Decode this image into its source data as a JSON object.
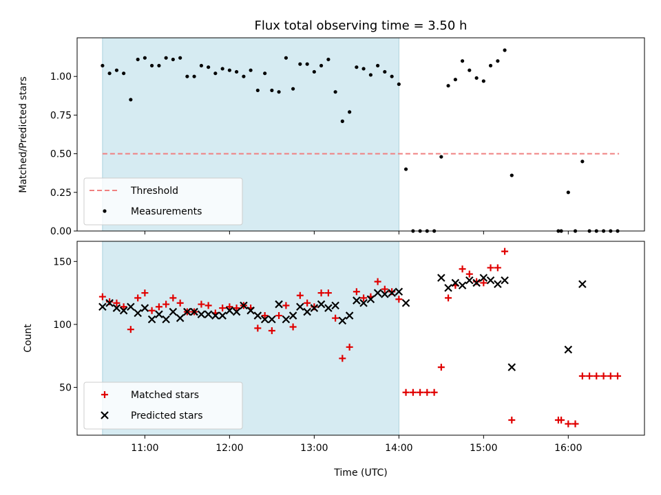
{
  "chart_data": [
    {
      "type": "scatter",
      "title": "Flux total observing time = 3.50 h",
      "xlabel": "",
      "ylabel": "Matched/Predicted stars",
      "xlim": [
        10.2,
        16.9
      ],
      "ylim": [
        0,
        1.25
      ],
      "yticks": [
        0.0,
        0.25,
        0.5,
        0.75,
        1.0
      ],
      "ytick_labels": [
        "0.00",
        "0.25",
        "0.50",
        "0.75",
        "1.00"
      ],
      "shaded_span": [
        10.5,
        14.0
      ],
      "legend": {
        "location": "lower-left",
        "entries": [
          "Threshold",
          "Measurements"
        ]
      },
      "threshold": {
        "name": "Threshold",
        "value": 0.5,
        "x_range": [
          10.5,
          16.6
        ],
        "color": "#f08080"
      },
      "series": [
        {
          "name": "Measurements",
          "marker": "dot",
          "color": "#000000",
          "x": [
            10.5,
            10.583,
            10.667,
            10.75,
            10.833,
            10.917,
            11.0,
            11.083,
            11.167,
            11.25,
            11.333,
            11.417,
            11.5,
            11.583,
            11.667,
            11.75,
            11.833,
            11.917,
            12.0,
            12.083,
            12.167,
            12.25,
            12.333,
            12.417,
            12.5,
            12.583,
            12.667,
            12.75,
            12.833,
            12.917,
            13.0,
            13.083,
            13.167,
            13.25,
            13.333,
            13.417,
            13.5,
            13.583,
            13.667,
            13.75,
            13.833,
            13.917,
            14.0,
            14.083,
            14.167,
            14.25,
            14.333,
            14.417,
            14.5,
            14.583,
            14.667,
            14.75,
            14.833,
            14.917,
            15.0,
            15.083,
            15.167,
            15.25,
            15.333,
            15.883,
            15.917,
            16.0,
            16.083,
            16.167,
            16.25,
            16.333,
            16.417,
            16.5,
            16.583
          ],
          "y": [
            1.07,
            1.02,
            1.04,
            1.02,
            0.85,
            1.11,
            1.12,
            1.07,
            1.07,
            1.12,
            1.11,
            1.12,
            1.0,
            1.0,
            1.07,
            1.06,
            1.02,
            1.05,
            1.04,
            1.03,
            1.0,
            1.04,
            0.91,
            1.02,
            0.91,
            0.9,
            1.12,
            0.92,
            1.08,
            1.08,
            1.03,
            1.07,
            1.11,
            0.9,
            0.71,
            0.77,
            1.06,
            1.05,
            1.01,
            1.07,
            1.03,
            1.0,
            0.95,
            0.4,
            0.0,
            0.0,
            0.0,
            0.0,
            0.48,
            0.94,
            0.98,
            1.1,
            1.04,
            0.99,
            0.97,
            1.07,
            1.1,
            1.17,
            0.36,
            0.0,
            0.0,
            0.25,
            0.0,
            0.45,
            0.0,
            0.0,
            0.0,
            0.0,
            0.0
          ]
        }
      ]
    },
    {
      "type": "scatter",
      "title": "",
      "xlabel": "Time (UTC)",
      "ylabel": "Count",
      "xlim": [
        10.2,
        16.9
      ],
      "ylim": [
        12,
        166
      ],
      "yticks": [
        50,
        100,
        150
      ],
      "ytick_labels": [
        "50",
        "100",
        "150"
      ],
      "xticks": [
        11,
        12,
        13,
        14,
        15,
        16
      ],
      "xtick_labels": [
        "11:00",
        "12:00",
        "13:00",
        "14:00",
        "15:00",
        "16:00"
      ],
      "shaded_span": [
        10.5,
        14.0
      ],
      "legend": {
        "location": "lower-left",
        "entries": [
          "Matched stars",
          "Predicted stars"
        ]
      },
      "series": [
        {
          "name": "Matched stars",
          "marker": "plus",
          "color": "#e00000",
          "x": [
            10.5,
            10.583,
            10.667,
            10.75,
            10.833,
            10.917,
            11.0,
            11.083,
            11.167,
            11.25,
            11.333,
            11.417,
            11.5,
            11.583,
            11.667,
            11.75,
            11.833,
            11.917,
            12.0,
            12.083,
            12.167,
            12.25,
            12.333,
            12.417,
            12.5,
            12.583,
            12.667,
            12.75,
            12.833,
            12.917,
            13.0,
            13.083,
            13.167,
            13.25,
            13.333,
            13.417,
            13.5,
            13.583,
            13.667,
            13.75,
            13.833,
            13.917,
            14.0,
            14.083,
            14.167,
            14.25,
            14.333,
            14.417,
            14.5,
            14.583,
            14.667,
            14.75,
            14.833,
            14.917,
            15.0,
            15.083,
            15.167,
            15.25,
            15.333,
            15.883,
            15.917,
            16.0,
            16.083,
            16.167,
            16.25,
            16.333,
            16.417,
            16.5,
            16.583
          ],
          "y": [
            122,
            118,
            117,
            114,
            96,
            121,
            125,
            111,
            114,
            116,
            121,
            117,
            110,
            110,
            116,
            115,
            109,
            113,
            114,
            113,
            115,
            113,
            97,
            107,
            95,
            107,
            115,
            98,
            123,
            117,
            114,
            125,
            125,
            105,
            73,
            82,
            126,
            121,
            122,
            134,
            128,
            126,
            120,
            46,
            46,
            46,
            46,
            46,
            66,
            121,
            131,
            144,
            140,
            134,
            133,
            145,
            145,
            158,
            24,
            24,
            24,
            21,
            21,
            59,
            59,
            59,
            59,
            59,
            59
          ]
        },
        {
          "name": "Predicted stars",
          "marker": "x",
          "color": "#000000",
          "x": [
            10.5,
            10.583,
            10.667,
            10.75,
            10.833,
            10.917,
            11.0,
            11.083,
            11.167,
            11.25,
            11.333,
            11.417,
            11.5,
            11.583,
            11.667,
            11.75,
            11.833,
            11.917,
            12.0,
            12.083,
            12.167,
            12.25,
            12.333,
            12.417,
            12.5,
            12.583,
            12.667,
            12.75,
            12.833,
            12.917,
            13.0,
            13.083,
            13.167,
            13.25,
            13.333,
            13.417,
            13.5,
            13.583,
            13.667,
            13.75,
            13.833,
            13.917,
            14.0,
            14.083,
            14.5,
            14.583,
            14.667,
            14.75,
            14.833,
            14.917,
            15.0,
            15.083,
            15.167,
            15.25,
            15.333,
            16.0,
            16.167
          ],
          "y": [
            114,
            117,
            113,
            111,
            114,
            109,
            113,
            104,
            108,
            104,
            110,
            105,
            110,
            110,
            108,
            108,
            107,
            107,
            111,
            110,
            115,
            111,
            107,
            104,
            104,
            116,
            104,
            107,
            114,
            110,
            113,
            116,
            113,
            115,
            103,
            107,
            119,
            117,
            120,
            125,
            124,
            125,
            126,
            117,
            137,
            129,
            133,
            131,
            135,
            133,
            137,
            135,
            132,
            135,
            66,
            80,
            132
          ]
        }
      ]
    }
  ]
}
